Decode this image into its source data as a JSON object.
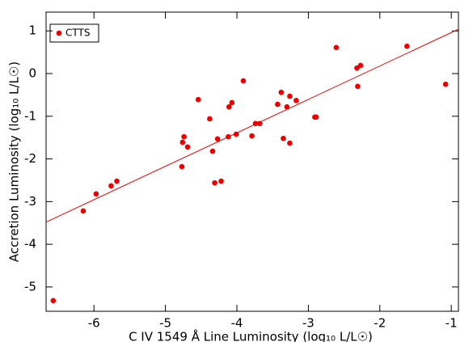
{
  "chart_data": {
    "type": "scatter",
    "xlabel": "C IV 1549 Å Line Luminosity (log₁₀ L/L☉)",
    "ylabel": "Accretion Luminosity (log₁₀ L/L☉)",
    "xlim": [
      -6.67,
      -0.9
    ],
    "ylim": [
      -5.57,
      1.44
    ],
    "xticks": [
      -6,
      -5,
      -4,
      -3,
      -2,
      -1
    ],
    "yticks": [
      -5,
      -4,
      -3,
      -2,
      -1,
      0,
      1
    ],
    "legend": "top-left",
    "series": [
      {
        "name": "CTTS",
        "color": "#ee0000",
        "x": [
          -6.57,
          -6.15,
          -5.97,
          -5.76,
          -5.68,
          -4.76,
          -4.74,
          -4.69,
          -4.54,
          -4.77,
          -4.38,
          -4.34,
          -4.31,
          -4.27,
          -4.22,
          -4.12,
          -4.11,
          -4.07,
          -4.01,
          -3.91,
          -3.79,
          -3.74,
          -3.68,
          -3.43,
          -3.38,
          -3.35,
          -3.3,
          -3.26,
          -3.26,
          -3.17,
          -2.91,
          -2.89,
          -2.61,
          -2.32,
          -2.31,
          -2.27,
          -1.62,
          -1.08
        ],
        "values": [
          -5.32,
          -3.22,
          -2.82,
          -2.63,
          -2.52,
          -1.61,
          -1.48,
          -1.72,
          -0.61,
          -2.18,
          -1.06,
          -1.82,
          -2.56,
          -1.53,
          -2.52,
          -1.48,
          -0.78,
          -0.68,
          -1.42,
          -0.17,
          -1.46,
          -1.17,
          -1.17,
          -0.72,
          -0.44,
          -1.52,
          -0.78,
          -0.53,
          -1.63,
          -0.63,
          -1.02,
          -1.02,
          0.61,
          0.13,
          -0.3,
          0.19,
          0.64,
          -0.25
        ]
      },
      {
        "type": "line",
        "color": "#ee0000",
        "x": [
          -6.67,
          -0.9
        ],
        "values": [
          -3.48,
          1.04
        ]
      }
    ]
  }
}
